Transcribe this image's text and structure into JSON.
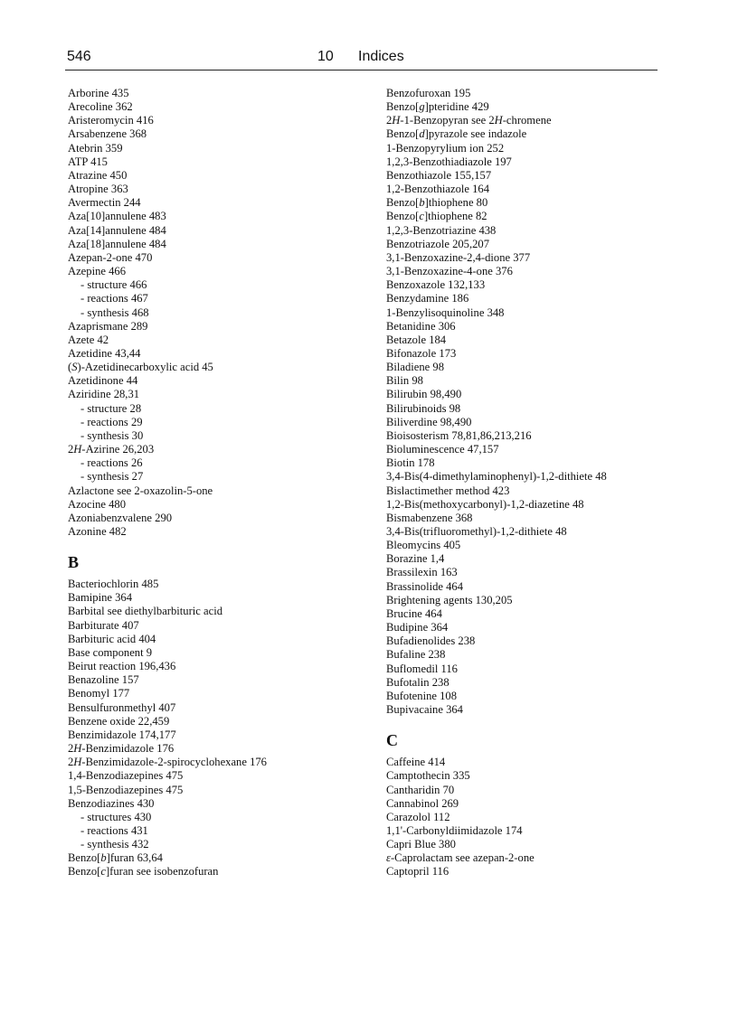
{
  "header": {
    "page_number": "546",
    "chapter_number": "10",
    "chapter_title": "Indices"
  },
  "left": [
    {
      "t": [
        "Arborine  435"
      ]
    },
    {
      "t": [
        "Arecoline  362"
      ]
    },
    {
      "t": [
        "Aristeromycin  416"
      ]
    },
    {
      "t": [
        "Arsabenzene  368"
      ]
    },
    {
      "t": [
        "Atebrin  359"
      ]
    },
    {
      "t": [
        "ATP  415"
      ]
    },
    {
      "t": [
        "Atrazine  450"
      ]
    },
    {
      "t": [
        "Atropine  363"
      ]
    },
    {
      "t": [
        "Avermectin  244"
      ]
    },
    {
      "t": [
        "Aza[10]annulene  483"
      ]
    },
    {
      "t": [
        "Aza[14]annulene  484"
      ]
    },
    {
      "t": [
        "Aza[18]annulene  484"
      ]
    },
    {
      "t": [
        "Azepan-2-one  470"
      ]
    },
    {
      "t": [
        "Azepine  466"
      ]
    },
    {
      "t": [
        "- structure  466"
      ],
      "sub": true
    },
    {
      "t": [
        "- reactions  467"
      ],
      "sub": true
    },
    {
      "t": [
        "- synthesis 468"
      ],
      "sub": true
    },
    {
      "t": [
        "Azaprismane  289"
      ]
    },
    {
      "t": [
        "Azete  42"
      ]
    },
    {
      "t": [
        "Azetidine  43,44"
      ]
    },
    {
      "t": [
        "(",
        "S",
        ")-Azetidinecarboxylic acid  45"
      ]
    },
    {
      "t": [
        "Azetidinone  44"
      ]
    },
    {
      "t": [
        "Aziridine  28,31"
      ]
    },
    {
      "t": [
        "- structure  28"
      ],
      "sub": true
    },
    {
      "t": [
        "- reactions  29"
      ],
      "sub": true
    },
    {
      "t": [
        "- synthesis  30"
      ],
      "sub": true
    },
    {
      "t": [
        "2",
        "H",
        "-Azirine  26,203"
      ]
    },
    {
      "t": [
        "- reactions  26"
      ],
      "sub": true
    },
    {
      "t": [
        "- synthesis  27"
      ],
      "sub": true
    },
    {
      "t": [
        "Azlactone  see 2-oxazolin-5-one"
      ]
    },
    {
      "t": [
        "Azocine  480"
      ]
    },
    {
      "t": [
        "Azoniabenzvalene  290"
      ]
    },
    {
      "t": [
        "Azonine  482"
      ]
    },
    {
      "section": "B"
    },
    {
      "t": [
        "Bacteriochlorin  485"
      ]
    },
    {
      "t": [
        "Bamipine  364"
      ]
    },
    {
      "t": [
        "Barbital  see diethylbarbituric acid"
      ]
    },
    {
      "t": [
        "Barbiturate  407"
      ]
    },
    {
      "t": [
        "Barbituric acid  404"
      ]
    },
    {
      "t": [
        "Base component 9"
      ]
    },
    {
      "t": [
        "Beirut reaction  196,436"
      ]
    },
    {
      "t": [
        "Benazoline  157"
      ]
    },
    {
      "t": [
        "Benomyl  177"
      ]
    },
    {
      "t": [
        "Bensulfuronmethyl  407"
      ]
    },
    {
      "t": [
        "Benzene oxide  22,459"
      ]
    },
    {
      "t": [
        "Benzimidazole  174,177"
      ]
    },
    {
      "t": [
        "2",
        "H",
        "-Benzimidazole  176"
      ]
    },
    {
      "t": [
        "2",
        "H",
        "-Benzimidazole-2-spirocyclohexane  176"
      ]
    },
    {
      "t": [
        "1,4-Benzodiazepines  475"
      ]
    },
    {
      "t": [
        "1,5-Benzodiazepines  475"
      ]
    },
    {
      "t": [
        "Benzodiazines  430"
      ]
    },
    {
      "t": [
        "- structures  430"
      ],
      "sub": true
    },
    {
      "t": [
        "- reactions  431"
      ],
      "sub": true
    },
    {
      "t": [
        "- synthesis 432"
      ],
      "sub": true
    },
    {
      "t": [
        "Benzo[",
        "b",
        "]furan  63,64"
      ]
    },
    {
      "t": [
        "Benzo[",
        "c",
        "]furan see isobenzofuran"
      ]
    }
  ],
  "right": [
    {
      "t": [
        "Benzofuroxan  195"
      ]
    },
    {
      "t": [
        "Benzo[",
        "g",
        "]pteridine  429"
      ]
    },
    {
      "t": [
        "2",
        "H",
        "-1-Benzopyran  see 2",
        "H",
        "-chromene"
      ]
    },
    {
      "t": [
        "Benzo[",
        "d",
        "]pyrazole see indazole"
      ]
    },
    {
      "t": [
        "1-Benzopyrylium ion  252"
      ]
    },
    {
      "t": [
        "1,2,3-Benzothiadiazole  197"
      ]
    },
    {
      "t": [
        "Benzothiazole  155,157"
      ]
    },
    {
      "t": [
        "1,2-Benzothiazole  164"
      ]
    },
    {
      "t": [
        "Benzo[",
        "b",
        "]thiophene  80"
      ]
    },
    {
      "t": [
        "Benzo[",
        "c",
        "]thiophene  82"
      ]
    },
    {
      "t": [
        "1,2,3-Benzotriazine  438"
      ]
    },
    {
      "t": [
        "Benzotriazole  205,207"
      ]
    },
    {
      "t": [
        "3,1-Benzoxazine-2,4-dione  377"
      ]
    },
    {
      "t": [
        "3,1-Benzoxazine-4-one  376"
      ]
    },
    {
      "t": [
        "Benzoxazole  132,133"
      ]
    },
    {
      "t": [
        "Benzydamine  186"
      ]
    },
    {
      "t": [
        "1-Benzylisoquinoline  348"
      ]
    },
    {
      "t": [
        "Betanidine  306"
      ]
    },
    {
      "t": [
        "Betazole  184"
      ]
    },
    {
      "t": [
        "Bifonazole  173"
      ]
    },
    {
      "t": [
        "Biladiene  98"
      ]
    },
    {
      "t": [
        "Bilin  98"
      ]
    },
    {
      "t": [
        "Bilirubin  98,490"
      ]
    },
    {
      "t": [
        "Bilirubinoids  98"
      ]
    },
    {
      "t": [
        "Biliverdine  98,490"
      ]
    },
    {
      "t": [
        "Bioisosterism  78,81,86,213,216"
      ]
    },
    {
      "t": [
        "Bioluminescence  47,157"
      ]
    },
    {
      "t": [
        "Biotin  178"
      ]
    },
    {
      "t": [
        "3,4-Bis(4-dimethylaminophenyl)-1,2-dithiete  48"
      ]
    },
    {
      "t": [
        "Bislactimether method  423"
      ]
    },
    {
      "t": [
        "1,2-Bis(methoxycarbonyl)-1,2-diazetine  48"
      ]
    },
    {
      "t": [
        "Bismabenzene  368"
      ]
    },
    {
      "t": [
        "3,4-Bis(trifluoromethyl)-1,2-dithiete  48"
      ]
    },
    {
      "t": [
        "Bleomycins  405"
      ]
    },
    {
      "t": [
        "Borazine  1,4"
      ]
    },
    {
      "t": [
        "Brassilexin  163"
      ]
    },
    {
      "t": [
        "Brassinolide  464"
      ]
    },
    {
      "t": [
        "Brightening agents 130,205"
      ]
    },
    {
      "t": [
        "Brucine  464"
      ]
    },
    {
      "t": [
        "Budipine  364"
      ]
    },
    {
      "t": [
        "Bufadienolides  238"
      ]
    },
    {
      "t": [
        "Bufaline  238"
      ]
    },
    {
      "t": [
        "Buflomedil  116"
      ]
    },
    {
      "t": [
        "Bufotalin  238"
      ]
    },
    {
      "t": [
        "Bufotenine  108"
      ]
    },
    {
      "t": [
        "Bupivacaine  364"
      ]
    },
    {
      "section": "C"
    },
    {
      "t": [
        "Caffeine 414"
      ]
    },
    {
      "t": [
        "Camptothecin  335"
      ]
    },
    {
      "t": [
        "Cantharidin  70"
      ]
    },
    {
      "t": [
        "Cannabinol  269"
      ]
    },
    {
      "t": [
        "Carazolol  112"
      ]
    },
    {
      "t": [
        "1,1'-Carbonyldiimidazole  174"
      ]
    },
    {
      "t": [
        "Capri Blue  380"
      ]
    },
    {
      "t": [
        "",
        "ε",
        "-Caprolactam  see azepan-2-one"
      ]
    },
    {
      "t": [
        "Captopril  116"
      ]
    }
  ]
}
